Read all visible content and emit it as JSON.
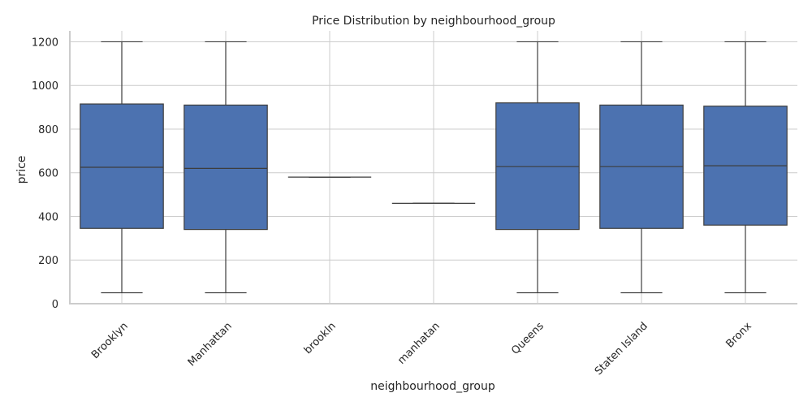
{
  "chart_data": {
    "type": "box",
    "title": "Price Distribution by neighbourhood_group",
    "xlabel": "neighbourhood_group",
    "ylabel": "price",
    "ylim": [
      0,
      1250
    ],
    "yticks": [
      0,
      200,
      400,
      600,
      800,
      1000,
      1200
    ],
    "grid": true,
    "color": "#4c72b0",
    "categories": [
      "Brooklyn",
      "Manhattan",
      "brookln",
      "manhatan",
      "Queens",
      "Staten Island",
      "Bronx"
    ],
    "boxes": [
      {
        "category": "Brooklyn",
        "min": 50,
        "q1": 345,
        "median": 625,
        "q3": 915,
        "max": 1200
      },
      {
        "category": "Manhattan",
        "min": 50,
        "q1": 340,
        "median": 620,
        "q3": 910,
        "max": 1200
      },
      {
        "category": "brookln",
        "min": 580,
        "q1": 580,
        "median": 580,
        "q3": 580,
        "max": 580
      },
      {
        "category": "manhatan",
        "min": 460,
        "q1": 460,
        "median": 460,
        "q3": 460,
        "max": 460
      },
      {
        "category": "Queens",
        "min": 50,
        "q1": 340,
        "median": 628,
        "q3": 920,
        "max": 1200
      },
      {
        "category": "Staten Island",
        "min": 50,
        "q1": 345,
        "median": 628,
        "q3": 910,
        "max": 1200
      },
      {
        "category": "Bronx",
        "min": 50,
        "q1": 360,
        "median": 632,
        "q3": 905,
        "max": 1200
      }
    ]
  }
}
